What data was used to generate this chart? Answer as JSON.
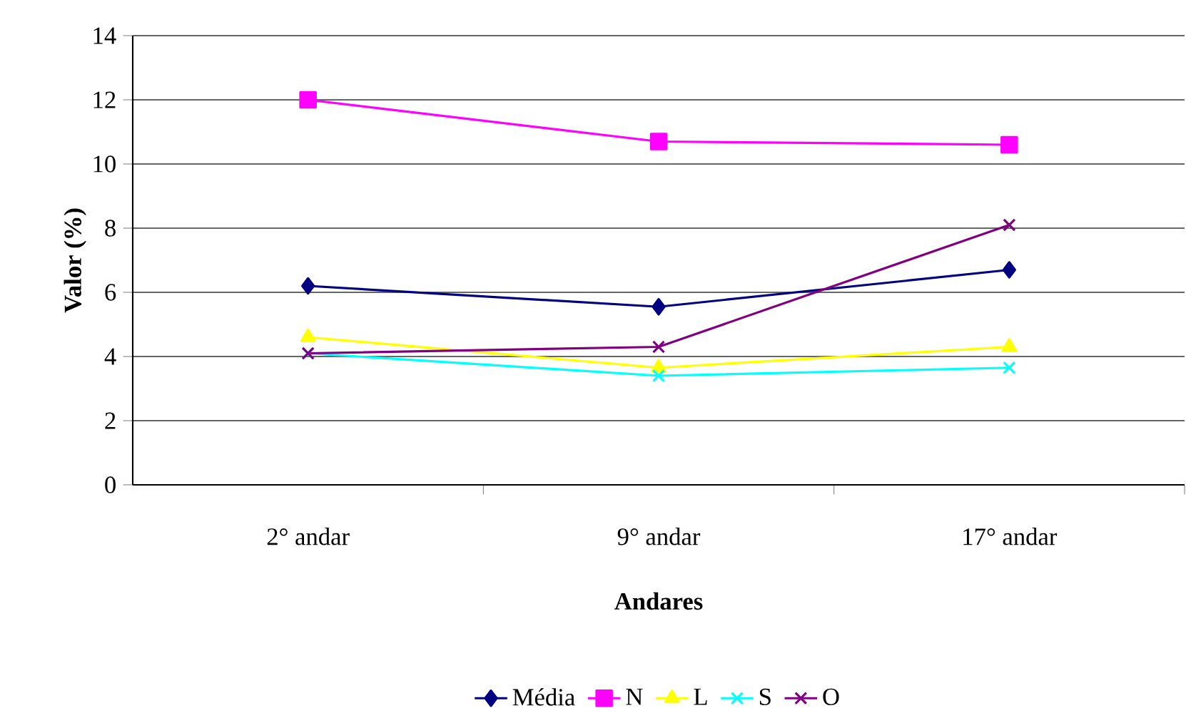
{
  "chart_data": {
    "type": "line",
    "xlabel": "Andares",
    "ylabel": "Valor (%)",
    "categories": [
      "2° andar",
      "9° andar",
      "17° andar"
    ],
    "ylim": [
      0,
      14
    ],
    "yticks": [
      0,
      2,
      4,
      6,
      8,
      10,
      12,
      14
    ],
    "grid": "y",
    "legend": "bottom",
    "line_style": "solid",
    "series": [
      {
        "name": "Média",
        "color": "#000080",
        "marker": "diamond",
        "values": [
          6.2,
          5.55,
          6.7
        ]
      },
      {
        "name": "N",
        "color": "#ff00ff",
        "marker": "square",
        "values": [
          12.0,
          10.7,
          10.6
        ]
      },
      {
        "name": "L",
        "color": "#ffff00",
        "marker": "triangle",
        "values": [
          4.6,
          3.65,
          4.3
        ]
      },
      {
        "name": "S",
        "color": "#00ffff",
        "marker": "cross",
        "values": [
          4.1,
          3.4,
          3.65
        ]
      },
      {
        "name": "O",
        "color": "#800080",
        "marker": "cross",
        "values": [
          4.1,
          4.3,
          8.1
        ]
      }
    ]
  }
}
